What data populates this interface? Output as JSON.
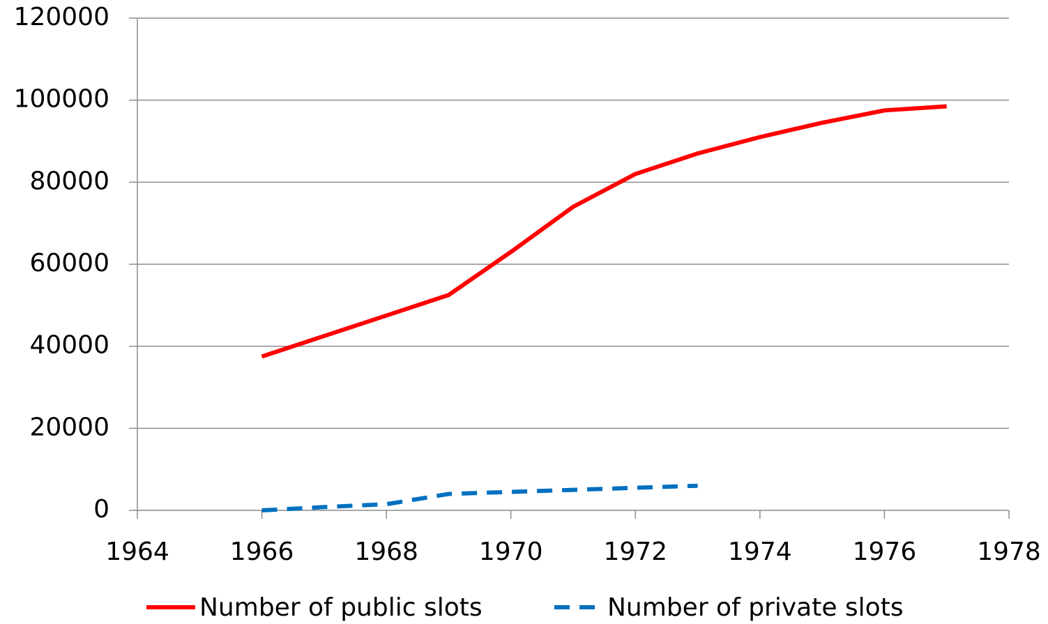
{
  "chart_data": {
    "type": "line",
    "x": [
      1966,
      1967,
      1968,
      1969,
      1970,
      1971,
      1972,
      1973,
      1974,
      1975,
      1976,
      1977
    ],
    "series": [
      {
        "name": "Number of public slots",
        "color": "#ff0000",
        "dashed": false,
        "values": [
          37500,
          42500,
          47500,
          52500,
          63000,
          74000,
          82000,
          87000,
          91000,
          94500,
          97500,
          98500
        ]
      },
      {
        "name": "Number of private slots",
        "color": "#0070c0",
        "dashed": true,
        "values": [
          0,
          800,
          1500,
          4000,
          4500,
          5000,
          5500,
          6000,
          null,
          null,
          null,
          null
        ]
      }
    ],
    "xlim": [
      1964,
      1978
    ],
    "xticks": [
      1964,
      1966,
      1968,
      1970,
      1972,
      1974,
      1976,
      1978
    ],
    "ylim": [
      0,
      120000
    ],
    "yticks": [
      0,
      20000,
      40000,
      60000,
      80000,
      100000,
      120000
    ],
    "grid": true,
    "legend": "bottom"
  }
}
